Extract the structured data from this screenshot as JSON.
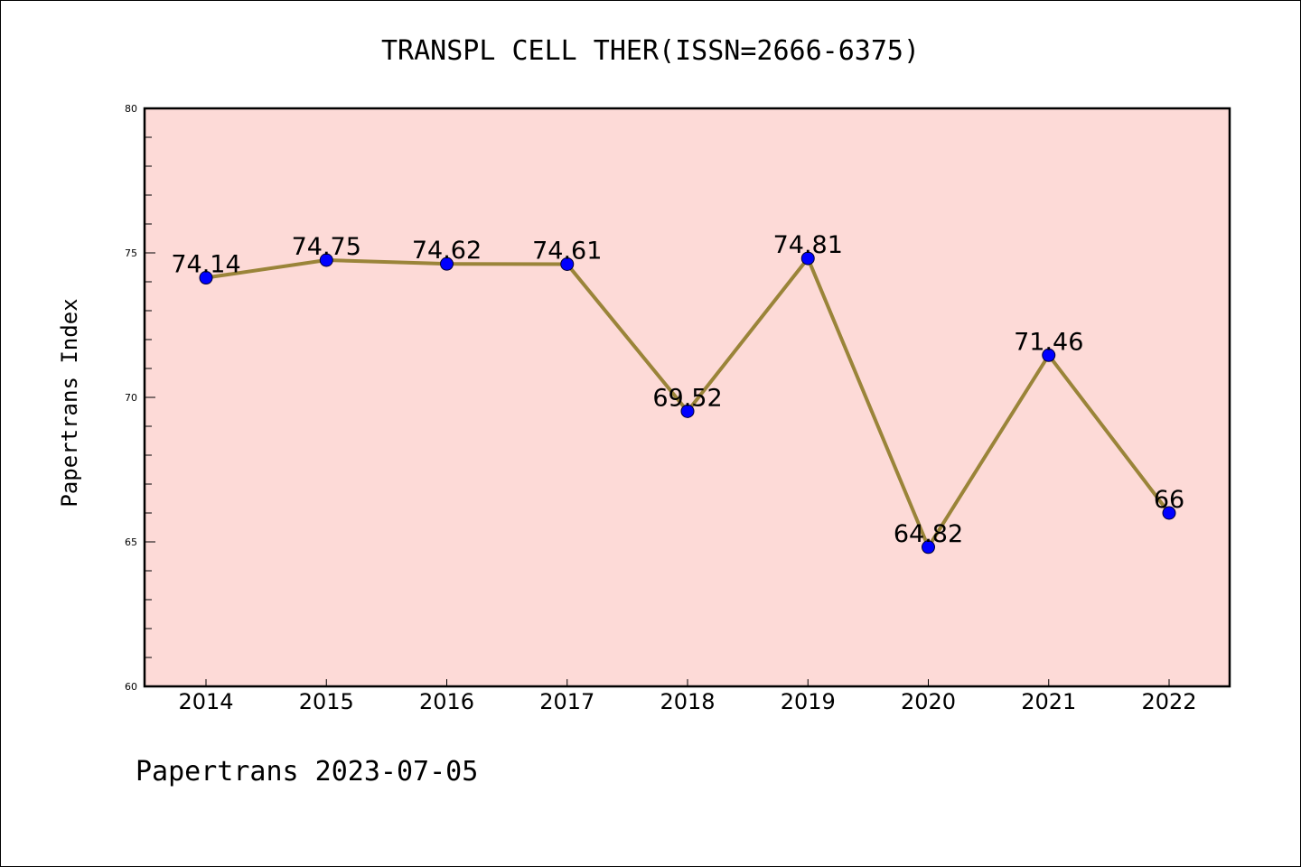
{
  "chart_data": {
    "type": "line",
    "title": "TRANSPL CELL THER(ISSN=2666-6375)",
    "ylabel": "Papertrans Index",
    "xlabel": "",
    "x": [
      "2014",
      "2015",
      "2016",
      "2017",
      "2018",
      "2019",
      "2020",
      "2021",
      "2022"
    ],
    "series": [
      {
        "values": [
          74.14,
          74.75,
          74.62,
          74.61,
          69.52,
          74.81,
          64.82,
          71.46,
          66
        ],
        "labels": [
          "74.14",
          "74.75",
          "74.62",
          "74.61",
          "69.52",
          "74.81",
          "64.82",
          "71.46",
          "66"
        ]
      }
    ],
    "ylim": [
      60,
      80
    ],
    "yticks": [
      "60",
      "65",
      "70",
      "75",
      "80"
    ],
    "yminor_step": 1,
    "grid": false,
    "colors": {
      "plot_background": "#fddad7",
      "line": "#9a8439",
      "marker": "#0000ff"
    }
  },
  "footer": "Papertrans 2023-07-05"
}
